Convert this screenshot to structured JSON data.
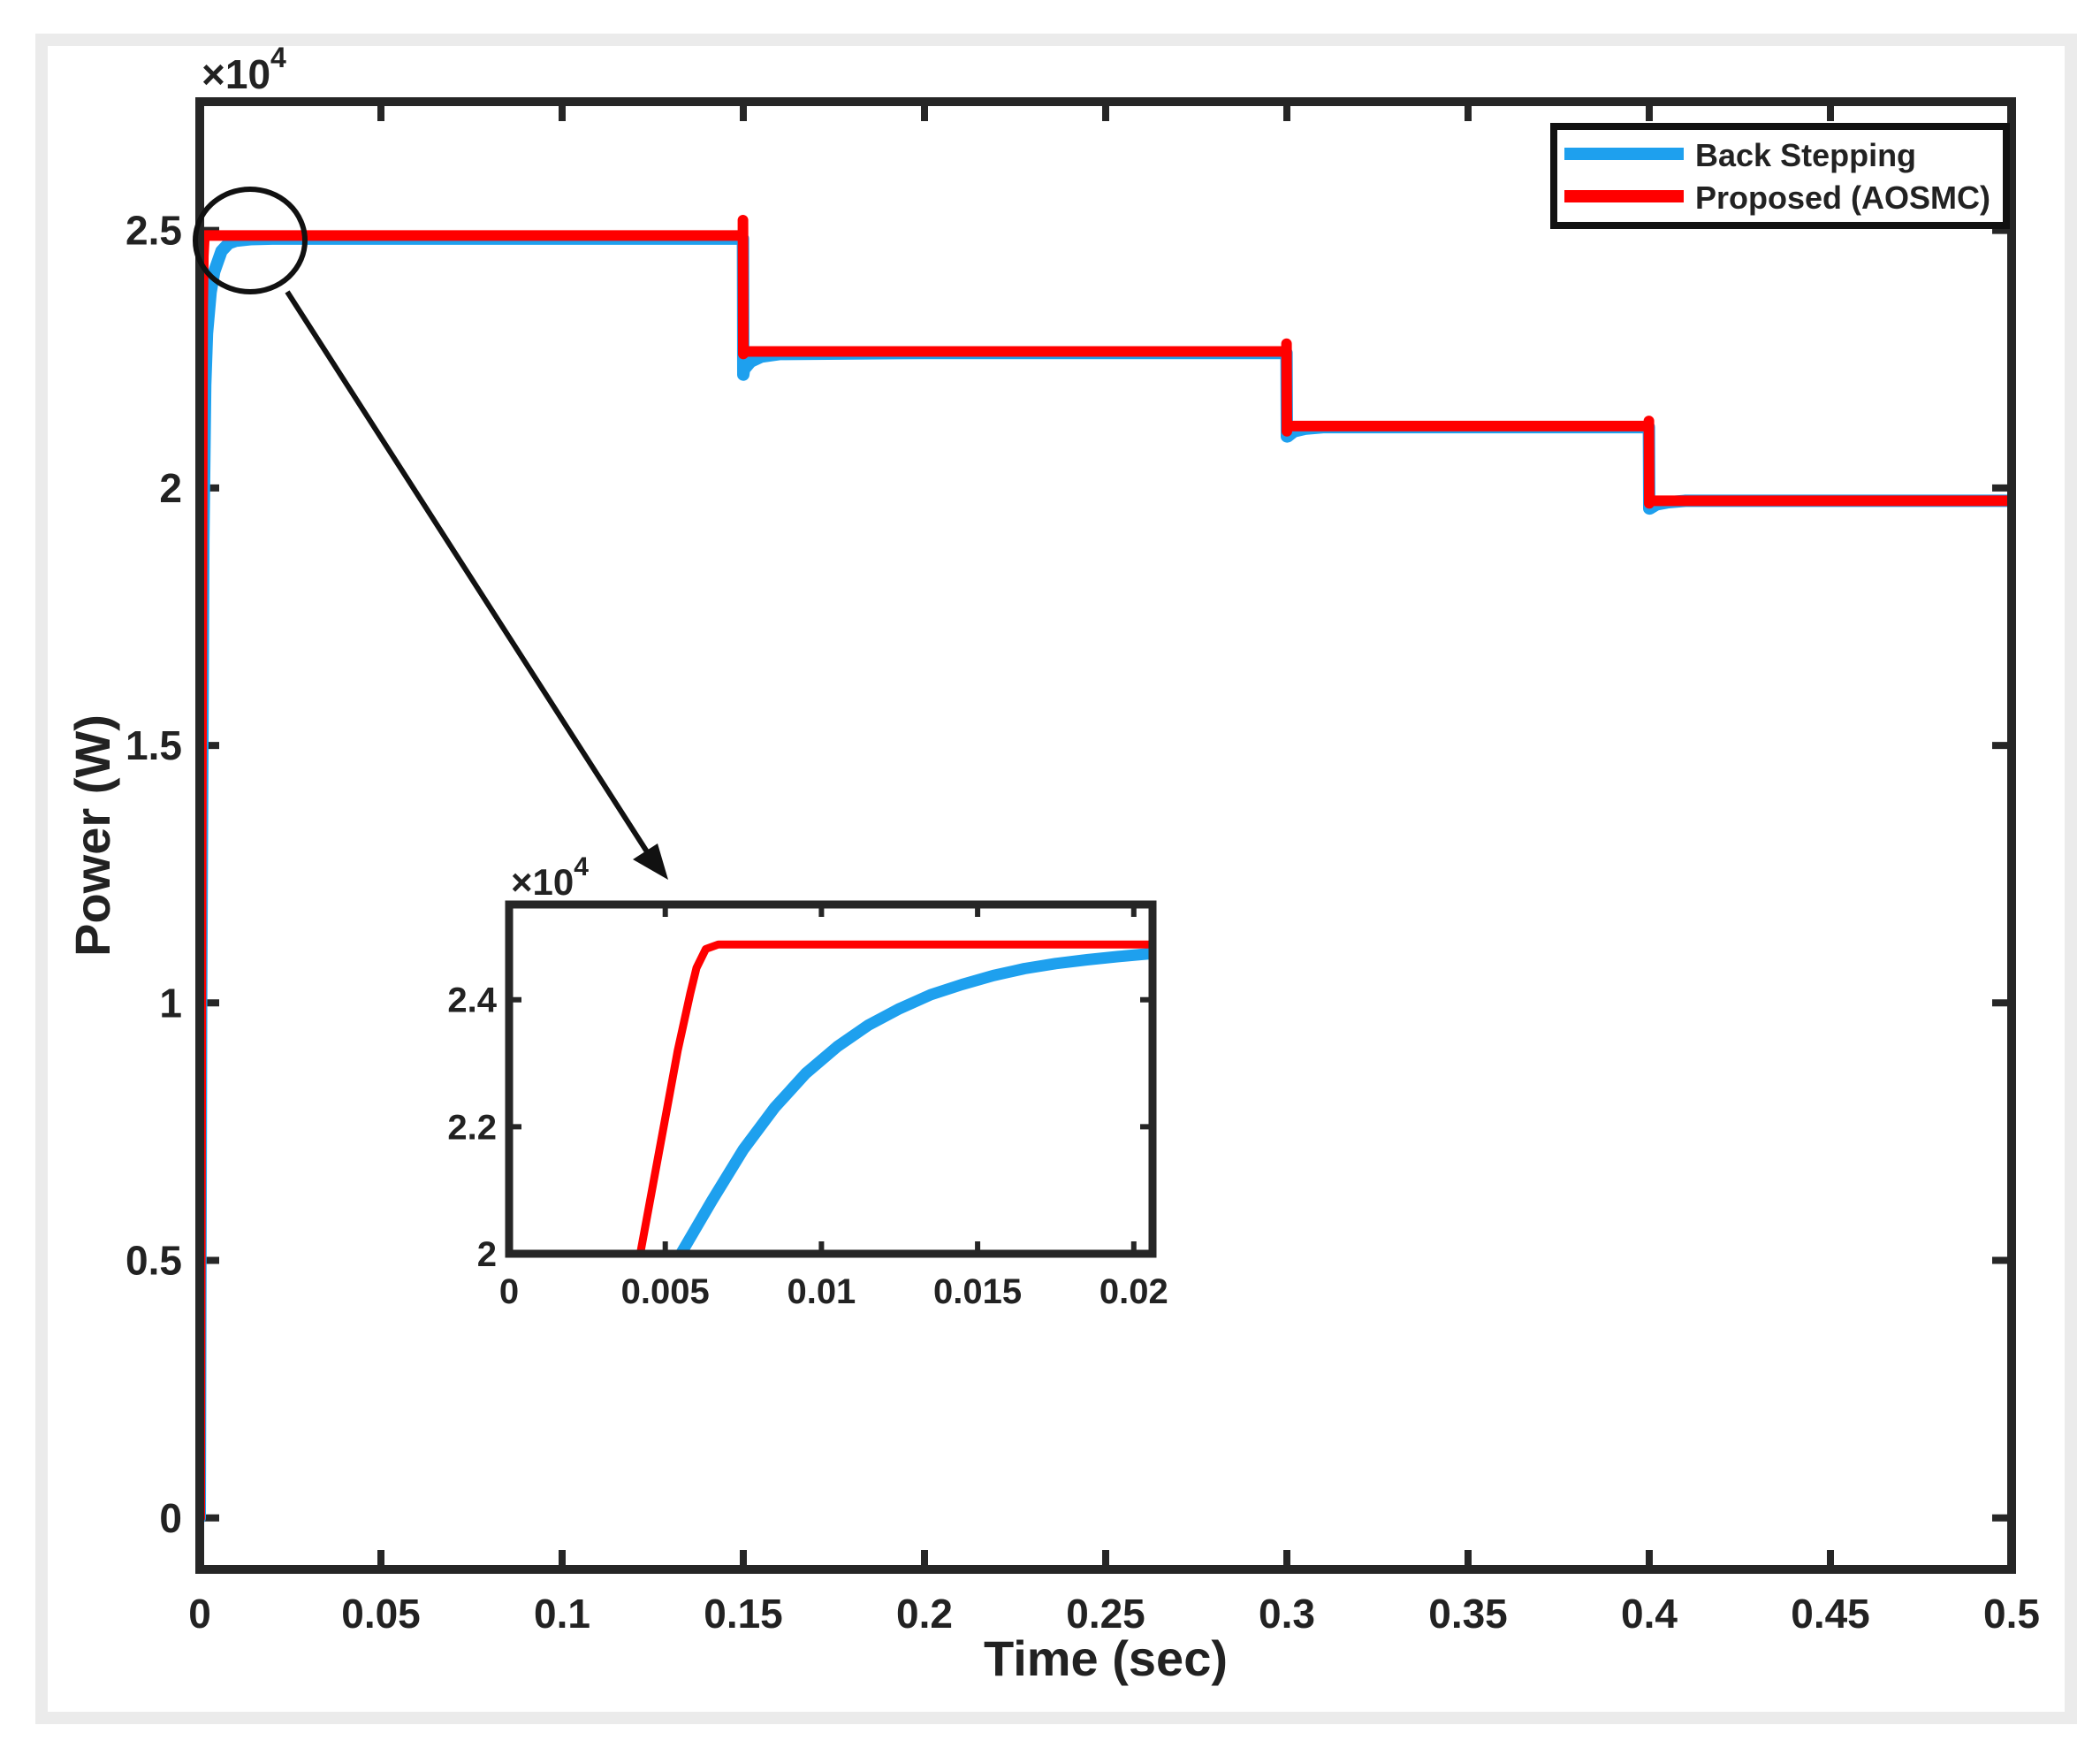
{
  "colors": {
    "axis": "#262626",
    "background": "#ffffff",
    "frame": "#ebebeb",
    "back_stepping": "#1ea0ee",
    "proposed": "#ff0000"
  },
  "chart_data": [
    {
      "id": "main",
      "type": "line",
      "xlabel": "Time (sec)",
      "ylabel": "Power (W)",
      "exponent_label": "×10",
      "exponent_power": "4",
      "xlim": [
        0,
        0.5
      ],
      "ylim": [
        -0.1,
        2.75
      ],
      "y_scale_note": "values in units of 10^4 W",
      "x_ticks": [
        0,
        0.05,
        0.1,
        0.15,
        0.2,
        0.25,
        0.3,
        0.35,
        0.4,
        0.45,
        0.5
      ],
      "x_tick_labels": [
        "0",
        "0.05",
        "0.1",
        "0.15",
        "0.2",
        "0.25",
        "0.3",
        "0.35",
        "0.4",
        "0.45",
        "0.5"
      ],
      "y_ticks": [
        0,
        0.5,
        1,
        1.5,
        2,
        2.5
      ],
      "y_tick_labels": [
        "0",
        "0.5",
        "1",
        "1.5",
        "2",
        "2.5"
      ],
      "grid": false,
      "legend_position": "top-right",
      "series": [
        {
          "name": "Back Stepping",
          "color": "#1ea0ee",
          "x": [
            0,
            0.0004,
            0.001,
            0.0015,
            0.002,
            0.003,
            0.004,
            0.005,
            0.006,
            0.008,
            0.01,
            0.014,
            0.02,
            0.05,
            0.1,
            0.1499,
            0.15,
            0.1502,
            0.152,
            0.155,
            0.16,
            0.2,
            0.2999,
            0.3,
            0.3002,
            0.302,
            0.305,
            0.31,
            0.35,
            0.3999,
            0.4,
            0.4002,
            0.402,
            0.405,
            0.41,
            0.45,
            0.5
          ],
          "y": [
            0,
            1.0,
            1.9,
            2.2,
            2.3,
            2.38,
            2.42,
            2.44,
            2.46,
            2.475,
            2.48,
            2.483,
            2.484,
            2.484,
            2.484,
            2.484,
            2.22,
            2.23,
            2.245,
            2.255,
            2.26,
            2.262,
            2.262,
            2.1,
            2.1,
            2.11,
            2.115,
            2.118,
            2.118,
            2.118,
            1.96,
            1.96,
            1.968,
            1.972,
            1.975,
            1.975,
            1.975
          ]
        },
        {
          "name": "Proposed (AOSMC)",
          "color": "#ff0000",
          "x": [
            0,
            0.0004,
            0.0008,
            0.001,
            0.0013,
            0.002,
            0.05,
            0.1,
            0.1499,
            0.1499,
            0.15,
            0.1501,
            0.16,
            0.2,
            0.2999,
            0.2999,
            0.3,
            0.3001,
            0.31,
            0.35,
            0.3999,
            0.3999,
            0.4,
            0.4001,
            0.41,
            0.45,
            0.5
          ],
          "y": [
            0,
            1.3,
            2.35,
            2.45,
            2.49,
            2.49,
            2.49,
            2.49,
            2.49,
            2.52,
            2.26,
            2.265,
            2.265,
            2.265,
            2.265,
            2.28,
            2.11,
            2.12,
            2.12,
            2.12,
            2.12,
            2.13,
            1.97,
            1.975,
            1.975,
            1.975,
            1.975
          ]
        }
      ]
    },
    {
      "id": "inset",
      "type": "line",
      "exponent_label": "×10",
      "exponent_power": "4",
      "xlim": [
        0,
        0.0206
      ],
      "ylim": [
        2.0,
        2.55
      ],
      "x_ticks": [
        0,
        0.005,
        0.01,
        0.015,
        0.02
      ],
      "x_tick_labels": [
        "0",
        "0.005",
        "0.01",
        "0.015",
        "0.02"
      ],
      "y_ticks": [
        2,
        2.2,
        2.4
      ],
      "y_tick_labels": [
        "2",
        "2.2",
        "2.4"
      ],
      "grid": false,
      "series": [
        {
          "name": "Back Stepping",
          "color": "#1ea0ee",
          "x": [
            0.0055,
            0.0065,
            0.0075,
            0.0085,
            0.0095,
            0.0105,
            0.0115,
            0.0125,
            0.0135,
            0.0145,
            0.0155,
            0.0165,
            0.0175,
            0.0185,
            0.0195,
            0.0206
          ],
          "y": [
            2.0,
            2.084,
            2.164,
            2.23,
            2.284,
            2.326,
            2.36,
            2.386,
            2.408,
            2.424,
            2.438,
            2.449,
            2.457,
            2.463,
            2.468,
            2.473
          ]
        },
        {
          "name": "Proposed (AOSMC)",
          "color": "#ff0000",
          "x": [
            0.0042,
            0.0048,
            0.0054,
            0.0058,
            0.006,
            0.0063,
            0.0067,
            0.0206
          ],
          "y": [
            2.0,
            2.16,
            2.32,
            2.41,
            2.45,
            2.48,
            2.487,
            2.487
          ]
        }
      ]
    }
  ]
}
